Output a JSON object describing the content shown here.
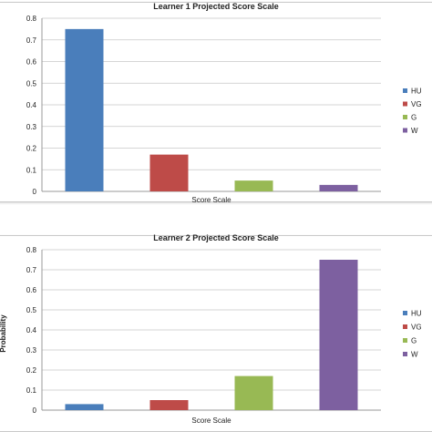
{
  "chart_data": [
    {
      "type": "bar",
      "title": "Learner 1 Projected Score Scale",
      "xlabel": "Score Scale",
      "ylabel": "",
      "categories": [
        "HU",
        "VG",
        "G",
        "W"
      ],
      "values": [
        0.75,
        0.17,
        0.05,
        0.03
      ],
      "colors": [
        "#4a7ebb",
        "#be4b48",
        "#98b954",
        "#7d60a0"
      ],
      "ylim": [
        0,
        0.8
      ],
      "yticks": [
        "0",
        "0.1",
        "0.2",
        "0.3",
        "0.4",
        "0.5",
        "0.6",
        "0.7",
        "0.8"
      ],
      "grid": true,
      "legend": {
        "placement": "right",
        "labels": [
          "HU",
          "VG",
          "G",
          "W"
        ]
      }
    },
    {
      "type": "bar",
      "title": "Learner 2 Projected Score Scale",
      "xlabel": "Score Scale",
      "ylabel": "Probability",
      "categories": [
        "HU",
        "VG",
        "G",
        "W"
      ],
      "values": [
        0.03,
        0.05,
        0.17,
        0.75
      ],
      "colors": [
        "#4a7ebb",
        "#be4b48",
        "#98b954",
        "#7d60a0"
      ],
      "ylim": [
        0,
        0.8
      ],
      "yticks": [
        "0",
        "0.1",
        "0.2",
        "0.3",
        "0.4",
        "0.5",
        "0.6",
        "0.7",
        "0.8"
      ],
      "grid": true,
      "legend": {
        "placement": "right",
        "labels": [
          "HU",
          "VG",
          "G",
          "W"
        ]
      }
    }
  ]
}
